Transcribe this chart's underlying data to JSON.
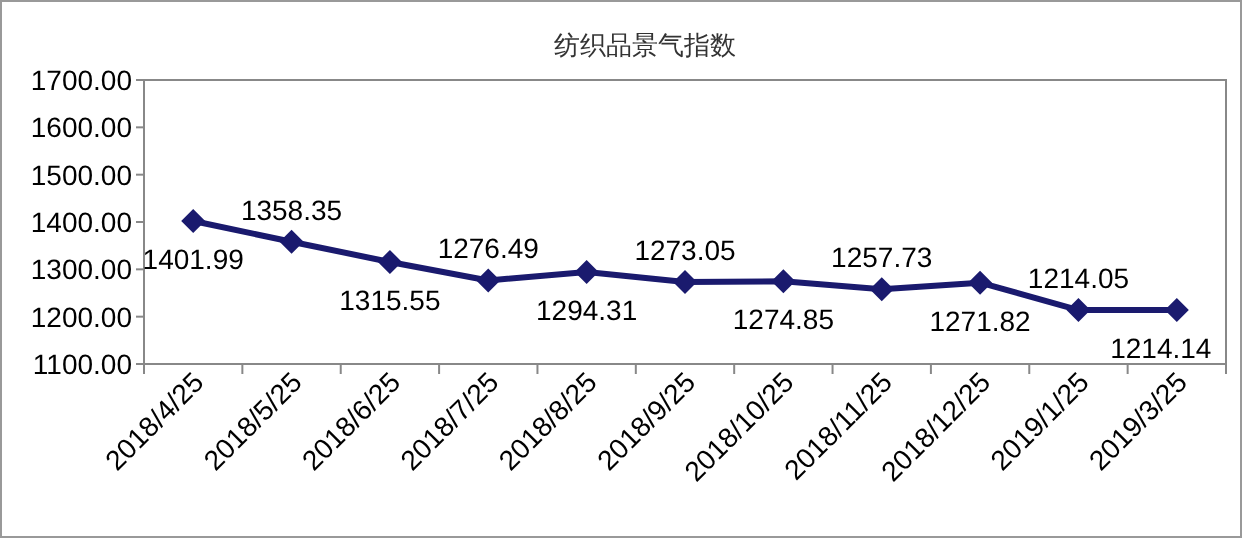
{
  "chart_data": {
    "type": "line",
    "title": "纺织品景气指数",
    "categories": [
      "2018/4/25",
      "2018/5/25",
      "2018/6/25",
      "2018/7/25",
      "2018/8/25",
      "2018/9/25",
      "2018/10/25",
      "2018/11/25",
      "2018/12/25",
      "2019/1/25",
      "2019/3/25"
    ],
    "series": [
      {
        "color": "#1a1a6e",
        "values": [
          1401.99,
          1358.35,
          1315.55,
          1276.49,
          1294.31,
          1273.05,
          1274.85,
          1257.73,
          1271.82,
          1214.05,
          1214.14
        ]
      }
    ],
    "ylim": [
      1100,
      1700
    ],
    "yticks": [
      {
        "value": 1100,
        "label": "1100.00"
      },
      {
        "value": 1200,
        "label": "1200.00"
      },
      {
        "value": 1300,
        "label": "1300.00"
      },
      {
        "value": 1400,
        "label": "1400.00"
      },
      {
        "value": 1500,
        "label": "1500.00"
      },
      {
        "value": 1600,
        "label": "1600.00"
      },
      {
        "value": 1700,
        "label": "1700.00"
      }
    ],
    "grid": false,
    "marker": "diamond",
    "line_style": "solid",
    "data_labels": true
  }
}
